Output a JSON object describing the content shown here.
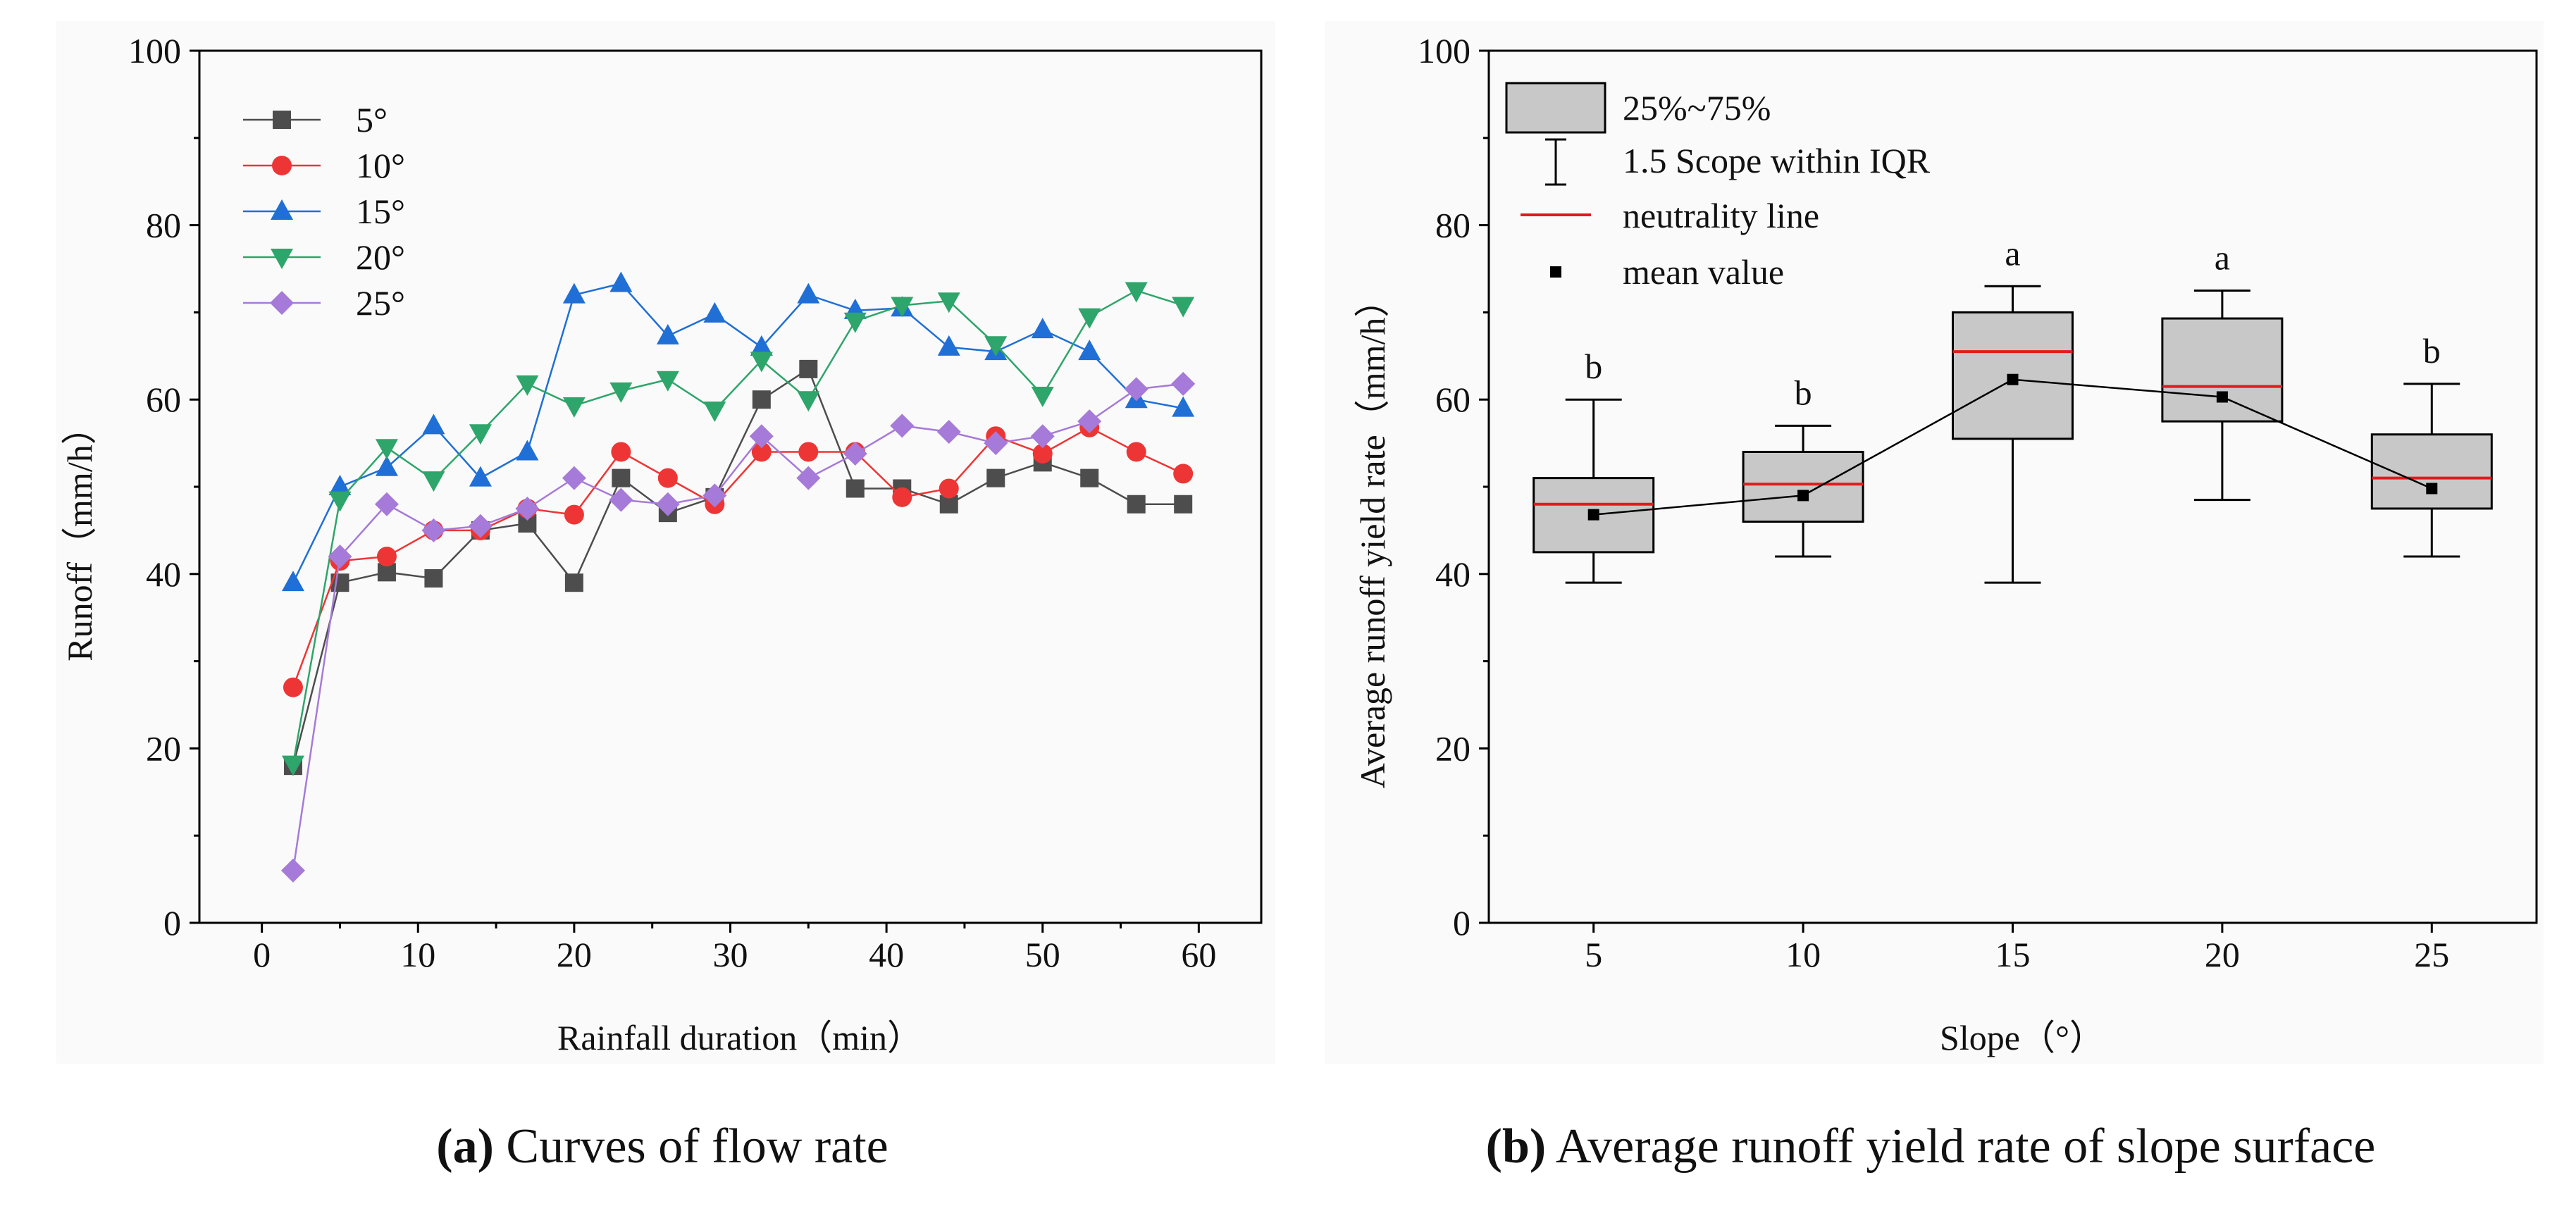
{
  "chart_data": [
    {
      "type": "line",
      "panel": "a",
      "caption_letter": "a",
      "caption_text": "Curves of flow rate",
      "xlabel": "Rainfall duration（min）",
      "ylabel": "Runoff（mm/h）",
      "xlim": [
        -4,
        64
      ],
      "ylim": [
        0,
        100
      ],
      "xticks": [
        0,
        10,
        20,
        30,
        40,
        50,
        60
      ],
      "yticks": [
        0,
        20,
        40,
        60,
        80,
        100
      ],
      "x": [
        2,
        5,
        8,
        11,
        14,
        17,
        20,
        23,
        26,
        29,
        32,
        35,
        38,
        41,
        44,
        47,
        50,
        53,
        56,
        59
      ],
      "legend_position": "top-left",
      "series": [
        {
          "name": "5°",
          "color": "#4d4d4d",
          "marker": "square",
          "values": [
            18,
            39,
            40.2,
            39.5,
            45,
            45.8,
            39,
            51,
            47,
            48.8,
            60,
            63.5,
            49.8,
            49.8,
            48,
            51,
            52.8,
            51,
            48,
            48
          ]
        },
        {
          "name": "10°",
          "color": "#ee3535",
          "marker": "circle",
          "values": [
            27,
            41.5,
            42,
            45,
            45,
            47.5,
            46.8,
            54,
            51,
            48,
            54,
            54,
            54,
            48.8,
            49.8,
            55.8,
            53.8,
            56.8,
            54,
            51.5
          ]
        },
        {
          "name": "15°",
          "color": "#1f6fd6",
          "marker": "triangle-up",
          "values": [
            39,
            50,
            52.2,
            57,
            51,
            54,
            72,
            73.3,
            67.3,
            69.8,
            66,
            72,
            70.2,
            70.5,
            66,
            65.5,
            68,
            65.5,
            60,
            59
          ]
        },
        {
          "name": "20°",
          "color": "#2ea56a",
          "marker": "triangle-down",
          "values": [
            18.2,
            48.5,
            54.5,
            50.8,
            56.2,
            61.8,
            59.3,
            61,
            62.3,
            58.8,
            64.5,
            60,
            69,
            70.8,
            71.3,
            66.3,
            60.5,
            69.5,
            72.5,
            70.8
          ]
        },
        {
          "name": "25°",
          "color": "#a67ad8",
          "marker": "diamond",
          "values": [
            6,
            42,
            48,
            45,
            45.5,
            47.5,
            51,
            48.5,
            48,
            49,
            55.8,
            51,
            53.8,
            57,
            56.3,
            55,
            55.8,
            57.5,
            61.2,
            61.8
          ]
        }
      ]
    },
    {
      "type": "box",
      "panel": "b",
      "caption_letter": "b",
      "caption_text": "Average runoff yield rate of slope surface",
      "xlabel": "Slope（°）",
      "ylabel": "Average runoff yield rate（mm/h）",
      "ylim": [
        0,
        100
      ],
      "yticks": [
        0,
        20,
        40,
        60,
        80,
        100
      ],
      "categories": [
        "5",
        "10",
        "15",
        "20",
        "25"
      ],
      "boxes": [
        {
          "whisker_low": 39,
          "q1": 42.5,
          "median": 48,
          "q3": 51,
          "whisker_high": 60,
          "mean": 46.8,
          "group": "b"
        },
        {
          "whisker_low": 42,
          "q1": 46,
          "median": 50.3,
          "q3": 54,
          "whisker_high": 57,
          "mean": 49,
          "group": "b"
        },
        {
          "whisker_low": 39,
          "q1": 55.5,
          "median": 65.5,
          "q3": 70,
          "whisker_high": 73,
          "mean": 62.3,
          "group": "a"
        },
        {
          "whisker_low": 48.5,
          "q1": 57.5,
          "median": 61.5,
          "q3": 69.3,
          "whisker_high": 72.5,
          "mean": 60.3,
          "group": "a"
        },
        {
          "whisker_low": 42,
          "q1": 47.5,
          "median": 51,
          "q3": 56,
          "whisker_high": 61.8,
          "mean": 49.8,
          "group": "b"
        }
      ],
      "legend": {
        "box": "25%~75%",
        "whisker": "1.5 Scope within IQR",
        "median": "neutrality line",
        "mean": "mean value"
      },
      "legend_position": "top-left",
      "colors": {
        "box_fill": "#c8c8c8",
        "median": "#e31a1c",
        "mean": "#000000",
        "whisker": "#000000"
      }
    }
  ]
}
